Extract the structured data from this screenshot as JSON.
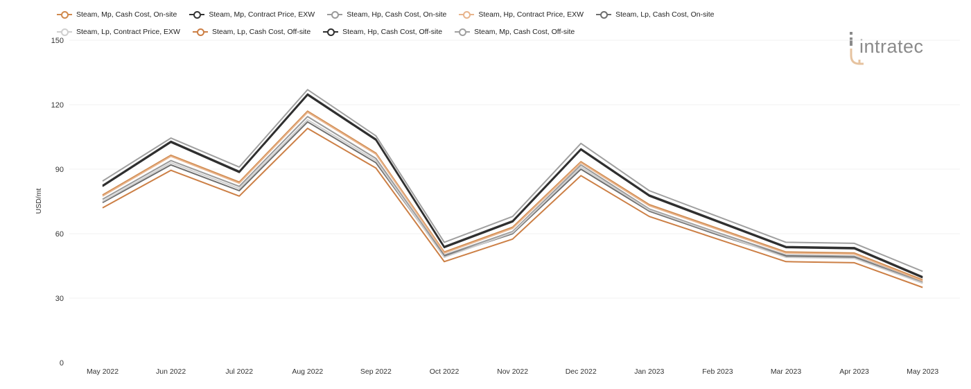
{
  "brand": {
    "name": "intratec",
    "colors": {
      "primary": "#8a8a8a",
      "accent": "#e0b48a"
    }
  },
  "chart_data": {
    "type": "line",
    "title": "",
    "xlabel": "",
    "ylabel": "USD/mt",
    "ylim": [
      0,
      150
    ],
    "yticks": [
      0,
      30,
      60,
      90,
      120,
      150
    ],
    "grid": true,
    "legend_position": "top",
    "categories": [
      "May 2022",
      "Jun 2022",
      "Jul 2022",
      "Aug 2022",
      "Sep 2022",
      "Oct 2022",
      "Nov 2022",
      "Dec 2022",
      "Jan 2023",
      "Feb 2023",
      "Mar 2023",
      "Apr 2023",
      "May 2023"
    ],
    "series": [
      {
        "name": "Steam, Mp, Cash Cost, On-site",
        "color": "#d08a4e",
        "values": [
          78,
          96.5,
          84,
          117,
          97.5,
          51.5,
          63,
          93.5,
          73.5,
          62.5,
          51.5,
          51,
          38.5
        ]
      },
      {
        "name": "Steam, Mp, Contract Price, EXW",
        "color": "#333333",
        "values": [
          82.5,
          103,
          89,
          125,
          104,
          54,
          66,
          99.5,
          78,
          66,
          54,
          53.5,
          40
        ]
      },
      {
        "name": "Steam, Hp, Cash Cost, On-site",
        "color": "#9a9a9a",
        "values": [
          76,
          94,
          82,
          114.5,
          95,
          50,
          61,
          92,
          71.5,
          60.5,
          50,
          49.5,
          37.5
        ]
      },
      {
        "name": "Steam, Hp, Contract Price, EXW",
        "color": "#e8b48c",
        "values": [
          77.5,
          96,
          83.5,
          116.5,
          97,
          51,
          62.5,
          93,
          73,
          62,
          51,
          50.5,
          38
        ]
      },
      {
        "name": "Steam, Lp, Cash Cost, On-site",
        "color": "#6e6e6e",
        "values": [
          74.5,
          92,
          80,
          112,
          93,
          49.5,
          60,
          90,
          70.5,
          59.5,
          49.5,
          49,
          37
        ]
      },
      {
        "name": "Steam, Lp, Contract Price, EXW",
        "color": "#cfcfcf",
        "values": [
          75,
          93,
          81,
          113,
          94,
          49,
          60.5,
          91,
          71,
          60,
          49,
          48.5,
          37
        ]
      },
      {
        "name": "Steam, Lp, Cash Cost, Off-site",
        "color": "#cc7f45",
        "values": [
          72,
          89.5,
          77.5,
          109,
          90.5,
          47,
          57.5,
          87,
          68,
          57.5,
          47,
          46.5,
          35
        ]
      },
      {
        "name": "Steam, Hp, Cash Cost, Off-site",
        "color": "#2e2e2e",
        "values": [
          82,
          102.5,
          88.5,
          124.5,
          103.5,
          53.5,
          65.5,
          99,
          77.5,
          65.5,
          53.5,
          53,
          39.5
        ]
      },
      {
        "name": "Steam, Mp, Cash Cost, Off-site",
        "color": "#a0a0a0",
        "values": [
          84.5,
          104.5,
          91,
          127,
          105.5,
          56,
          68,
          102,
          80,
          68,
          56,
          55.5,
          42.5
        ]
      }
    ]
  }
}
